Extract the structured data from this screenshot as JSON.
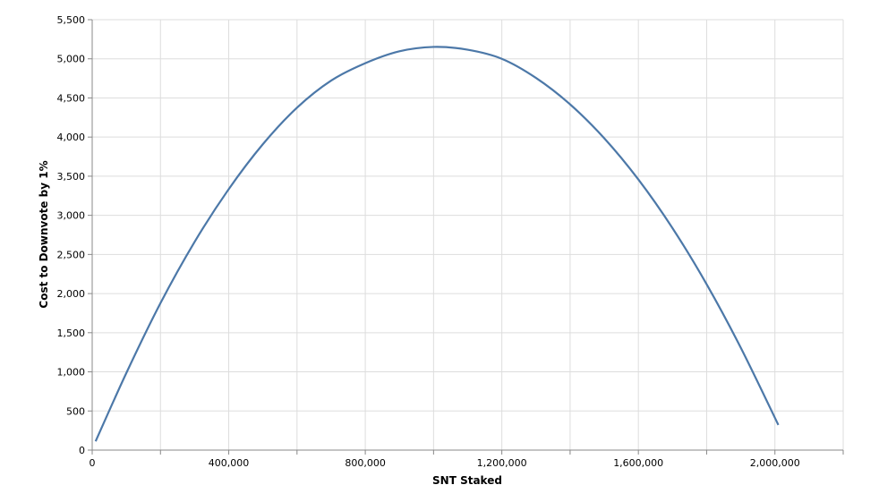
{
  "chart_data": {
    "type": "line",
    "title": "",
    "xlabel": "SNT Staked",
    "ylabel": "Cost to Downvote by 1%",
    "xlim": [
      0,
      2200000
    ],
    "ylim": [
      0,
      5500
    ],
    "x_ticks": [
      0,
      200000,
      400000,
      600000,
      800000,
      1000000,
      1200000,
      1400000,
      1600000,
      1800000,
      2000000,
      2200000
    ],
    "x_tick_labels": [
      "0",
      "",
      "400,000",
      "",
      "800,000",
      "",
      "1,200,000",
      "",
      "1,600,000",
      "",
      "2,000,000",
      ""
    ],
    "y_ticks": [
      0,
      500,
      1000,
      1500,
      2000,
      2500,
      3000,
      3500,
      4000,
      4500,
      5000,
      5500
    ],
    "y_tick_labels": [
      "0",
      "500",
      "1,000",
      "1,500",
      "2,000",
      "2,500",
      "3,000",
      "3,500",
      "4,000",
      "4,500",
      "5,000",
      "5,500"
    ],
    "grid": true,
    "legend": "none",
    "series": [
      {
        "color": "#4c78a8",
        "x": [
          10000,
          100000,
          200000,
          300000,
          400000,
          500000,
          600000,
          700000,
          800000,
          900000,
          1000000,
          1100000,
          1200000,
          1300000,
          1400000,
          1500000,
          1600000,
          1700000,
          1800000,
          1900000,
          2010000
        ],
        "values": [
          112,
          985,
          1878,
          2661,
          3335,
          3909,
          4376,
          4722,
          4944,
          5096,
          5152,
          5116,
          5000,
          4756,
          4418,
          3985,
          3458,
          2836,
          2119,
          1308,
          322
        ]
      }
    ]
  }
}
